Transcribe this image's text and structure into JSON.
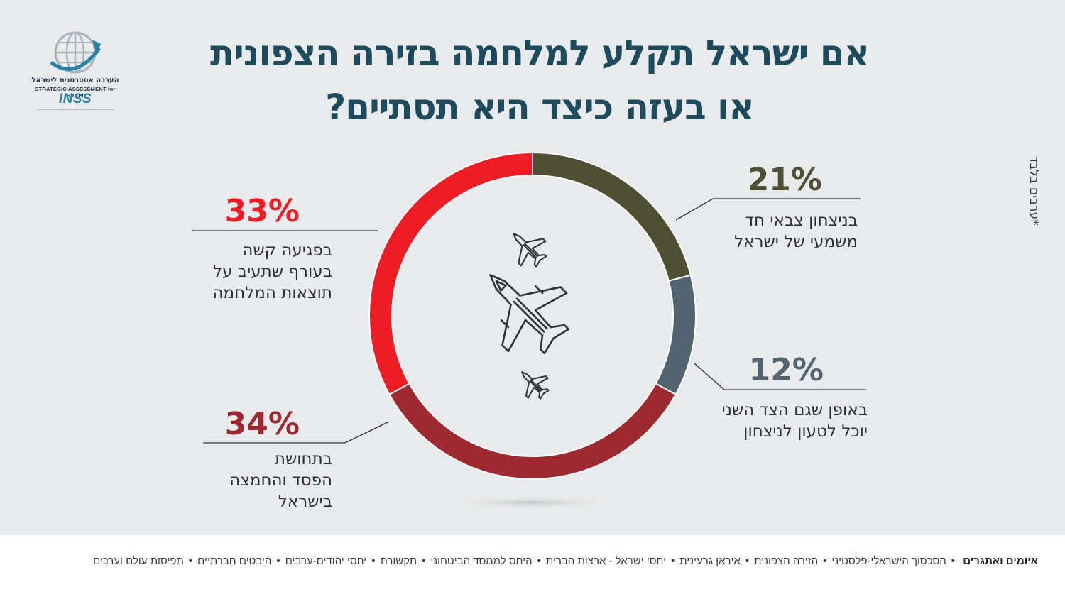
{
  "header": {
    "title_line1": "אם ישראל תקלע למלחמה בזירה הצפונית",
    "title_line2": "או בעזה כיצד היא תסתיים?"
  },
  "logo": {
    "text_he": "הערכה אסטרטגית לישראל",
    "text_en": "STRATEGIC ASSESSMENT for ISRAEL",
    "text_brand": "INSS",
    "icon": "globe-icon"
  },
  "side_note": "*ערבים בלבד",
  "chart_data": {
    "type": "pie",
    "donut": true,
    "title": "אם ישראל תקלע למלחמה בזירה הצפונית או בעזה כיצד היא תסתיים?",
    "center_icon": "fighter-jets-icon",
    "slices": [
      {
        "label_lines": [
          "בניצחון צבאי חד",
          "משמעי של ישראל"
        ],
        "value": 21,
        "value_label": "21%",
        "color": "#4f4f33"
      },
      {
        "label_lines": [
          "באופן שגם הצד השני",
          "יוכל לטעון לניצחון"
        ],
        "value": 12,
        "value_label": "12%",
        "color": "#52646f"
      },
      {
        "label_lines": [
          "בתחושת",
          "הפסד והחמצה",
          "בישראל"
        ],
        "value": 34,
        "value_label": "34%",
        "color": "#9e2a31"
      },
      {
        "label_lines": [
          "בפגיעה קשה",
          "בעורף שתעיב על",
          "תוצאות המלחמה"
        ],
        "value": 33,
        "value_label": "33%",
        "color": "#ee1c24"
      }
    ]
  },
  "footer": {
    "lead": "איומים ואתגרים",
    "items": [
      "הסכסוך הישראלי-פלסטיני",
      "הזירה הצפונית",
      "איראן גרעינית",
      "יחסי ישראל - ארצות הברית",
      "היחס לממסד הביטחוני",
      "תקשורת",
      "יחסי יהודים-ערבים",
      "היבטים חברתיים",
      "תפיסות עולם וערכים"
    ]
  }
}
